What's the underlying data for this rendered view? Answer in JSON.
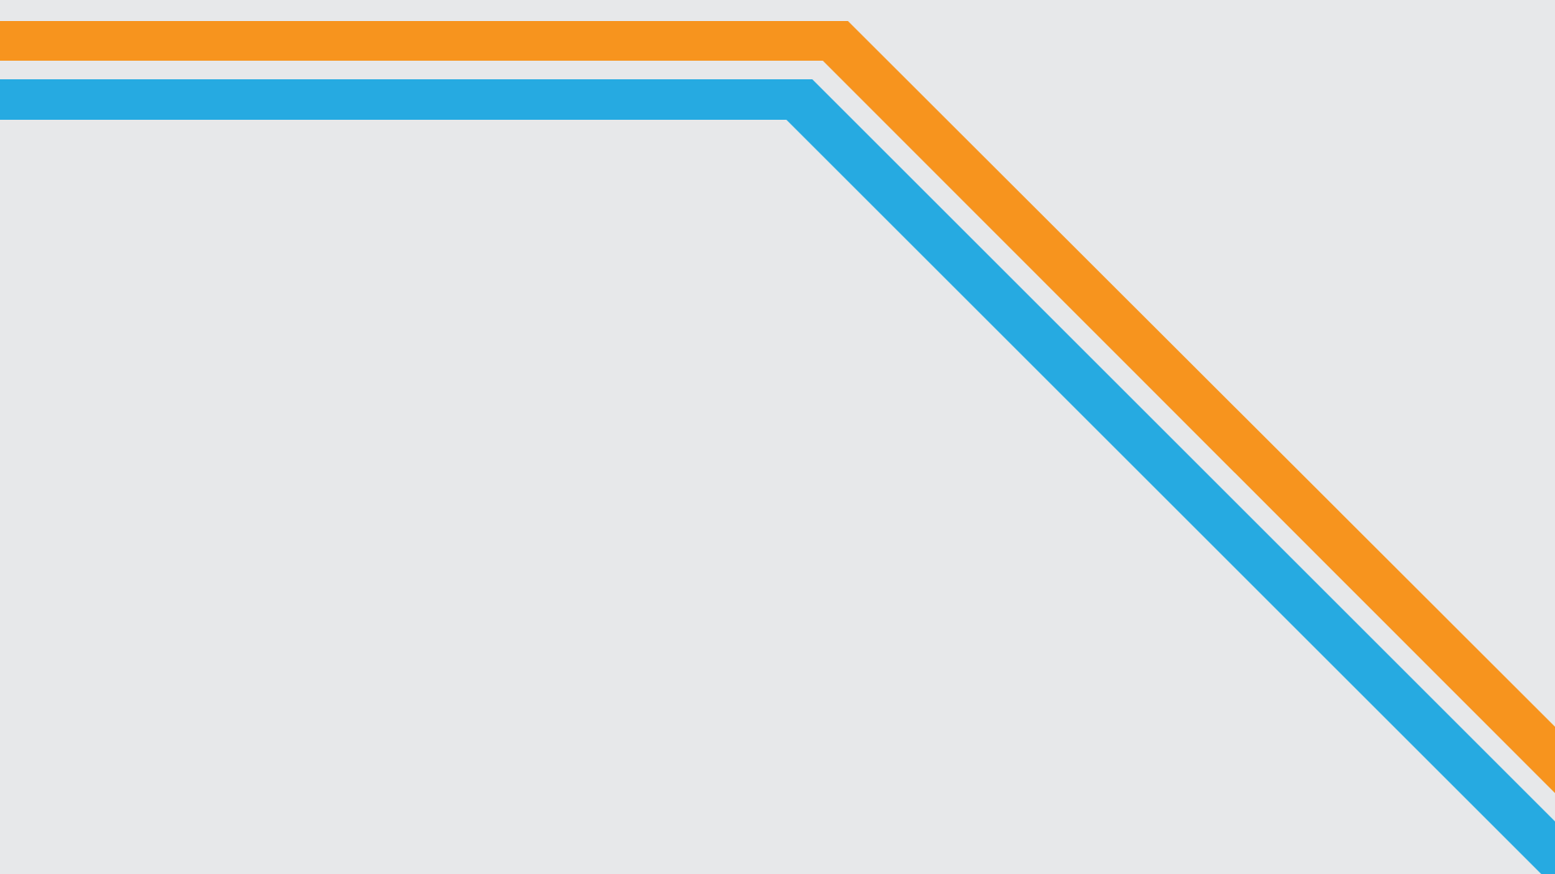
{
  "background": {
    "color": "#e7e8ea"
  },
  "stripes": [
    {
      "name": "orange-stripe",
      "color": "#f7941e"
    },
    {
      "name": "blue-stripe",
      "color": "#26aae1"
    }
  ]
}
